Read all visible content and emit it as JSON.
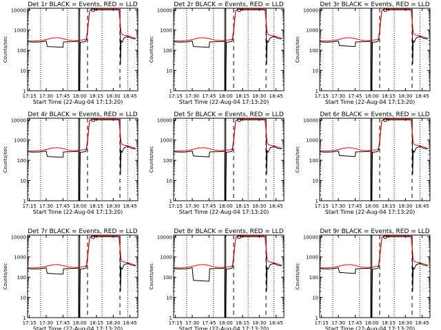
{
  "figure": {
    "colors": {
      "events": "#000000",
      "lld": "#ff0000",
      "background": "#ffffff"
    },
    "panels": [
      {
        "title": "Det 1r BLACK = Events, RED = LLD",
        "variant": 0
      },
      {
        "title": "Det 2r BLACK = Events, RED = LLD",
        "variant": 1
      },
      {
        "title": "Det 3r BLACK = Events, RED = LLD",
        "variant": 2
      },
      {
        "title": "Det 4r BLACK = Events, RED = LLD",
        "variant": 3
      },
      {
        "title": "Det 5r BLACK = Events, RED = LLD",
        "variant": 4
      },
      {
        "title": "Det 6r BLACK = Events, RED = LLD",
        "variant": 5
      },
      {
        "title": "Det 7r BLACK = Events, RED = LLD",
        "variant": 6
      },
      {
        "title": "Det 8r BLACK = Events, RED = LLD",
        "variant": 7
      },
      {
        "title": "Det 9r BLACK = Events, RED = LLD",
        "variant": 8
      }
    ]
  },
  "chart_data": {
    "type": "line",
    "scale_y": "log",
    "ylabel": "Counts/sec",
    "xlabel": "Start Time (22-Aug-04 17:13:20)",
    "xlim": [
      "17:13:20",
      "18:52:00"
    ],
    "ylim": [
      1,
      12000
    ],
    "x_ticks": [
      "17:15",
      "17:30",
      "17:45",
      "18:00",
      "18:15",
      "18:30",
      "18:45"
    ],
    "y_ticks": [
      "1",
      "10",
      "100",
      "1000",
      "10000"
    ],
    "grid": false,
    "vertical_markers": {
      "dotted": [
        "17:25",
        "17:49",
        "18:20",
        "18:43"
      ],
      "solid": [
        "17:59",
        "18:00"
      ],
      "dashed": [
        "18:07",
        "18:36"
      ]
    },
    "series": [
      {
        "name": "Events",
        "color": "#000000",
        "points": [
          [
            "17:13:20",
            260
          ],
          [
            "17:20",
            255
          ],
          [
            "17:25",
            260
          ],
          [
            "17:30",
            290
          ],
          [
            "17:31",
            155
          ],
          [
            "17:40",
            145
          ],
          [
            "17:45",
            140
          ],
          [
            "17:45:30",
            260
          ],
          [
            "17:55",
            270
          ],
          [
            "17:59",
            280
          ],
          [
            "17:59:30",
            1
          ],
          [
            "18:00",
            1
          ],
          [
            "18:00:30",
            250
          ],
          [
            "18:05",
            270
          ],
          [
            "18:06",
            320
          ],
          [
            "18:07",
            800
          ],
          [
            "18:08",
            3000
          ],
          [
            "18:09",
            9500
          ],
          [
            "18:11",
            10000
          ],
          [
            "18:12",
            11000
          ],
          [
            "18:13",
            10000
          ],
          [
            "18:19",
            10000
          ],
          [
            "18:20",
            10000
          ],
          [
            "18:21",
            10000
          ],
          [
            "18:27",
            10000
          ],
          [
            "18:28",
            10000
          ],
          [
            "18:34",
            10000
          ],
          [
            "18:35",
            10000
          ],
          [
            "18:36",
            10000
          ],
          [
            "18:36:30",
            20
          ],
          [
            "18:37",
            300
          ],
          [
            "18:38",
            250
          ],
          [
            "18:39",
            350
          ],
          [
            "18:40",
            420
          ],
          [
            "18:43",
            480
          ],
          [
            "18:46",
            400
          ],
          [
            "18:50",
            360
          ]
        ]
      },
      {
        "name": "LLD",
        "color": "#ff0000",
        "points": [
          [
            "17:13:20",
            290
          ],
          [
            "17:20",
            285
          ],
          [
            "17:25",
            300
          ],
          [
            "17:30",
            340
          ],
          [
            "17:35",
            400
          ],
          [
            "17:40",
            420
          ],
          [
            "17:45",
            380
          ],
          [
            "17:50",
            320
          ],
          [
            "17:55",
            300
          ],
          [
            "17:59",
            310
          ],
          [
            "18:05",
            340
          ],
          [
            "18:06",
            400
          ],
          [
            "18:07",
            1100
          ],
          [
            "18:08",
            3500
          ],
          [
            "18:09",
            9500
          ],
          [
            "18:11",
            10500
          ],
          [
            "18:12",
            11000
          ],
          [
            "18:34",
            11000
          ],
          [
            "18:35",
            10500
          ],
          [
            "18:36",
            3000
          ],
          [
            "18:37",
            800
          ],
          [
            "18:38",
            600
          ],
          [
            "18:40",
            560
          ],
          [
            "18:43",
            520
          ],
          [
            "18:46",
            460
          ],
          [
            "18:50",
            400
          ]
        ]
      }
    ]
  }
}
